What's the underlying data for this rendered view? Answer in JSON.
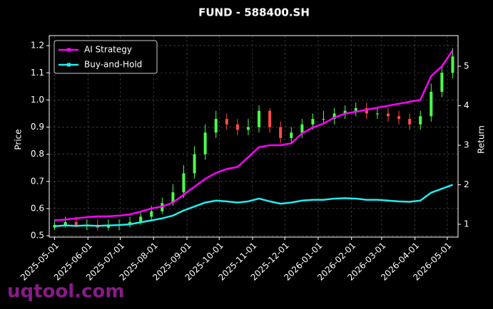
{
  "chart_data": {
    "type": "candlestick",
    "title": "FUND - 588400.SH",
    "ylabel": "Price",
    "y2label": "Return",
    "watermark": "uqtool.com",
    "x": [
      "2025-05-01",
      "2025-05-11",
      "2025-05-21",
      "2025-05-31",
      "2025-06-10",
      "2025-06-20",
      "2025-06-30",
      "2025-07-10",
      "2025-07-20",
      "2025-07-30",
      "2025-08-09",
      "2025-08-19",
      "2025-08-29",
      "2025-09-08",
      "2025-09-18",
      "2025-09-28",
      "2025-10-08",
      "2025-10-18",
      "2025-10-28",
      "2025-11-07",
      "2025-11-17",
      "2025-11-27",
      "2025-12-07",
      "2025-12-17",
      "2025-12-27",
      "2026-01-06",
      "2026-01-16",
      "2026-01-26",
      "2026-02-05",
      "2026-02-15",
      "2026-02-25",
      "2026-03-07",
      "2026-03-17",
      "2026-03-27",
      "2026-04-06",
      "2026-04-16",
      "2026-04-26",
      "2026-05-06"
    ],
    "candles": {
      "up_color": "#4cff4c",
      "down_color": "#ff4c4c",
      "open": [
        0.53,
        0.54,
        0.55,
        0.54,
        0.54,
        0.53,
        0.54,
        0.54,
        0.55,
        0.57,
        0.59,
        0.62,
        0.66,
        0.73,
        0.8,
        0.88,
        0.93,
        0.91,
        0.89,
        0.9,
        0.96,
        0.9,
        0.86,
        0.88,
        0.91,
        0.93,
        0.93,
        0.95,
        0.96,
        0.97,
        0.95,
        0.95,
        0.94,
        0.93,
        0.91,
        0.94,
        1.03,
        1.1
      ],
      "high": [
        0.56,
        0.57,
        0.57,
        0.56,
        0.56,
        0.56,
        0.56,
        0.57,
        0.59,
        0.61,
        0.64,
        0.69,
        0.76,
        0.83,
        0.91,
        0.96,
        0.95,
        0.93,
        0.93,
        0.98,
        0.97,
        0.92,
        0.9,
        0.93,
        0.95,
        0.96,
        0.97,
        0.98,
        0.99,
        0.99,
        0.97,
        0.97,
        0.96,
        0.95,
        0.96,
        1.06,
        1.13,
        1.19
      ],
      "low": [
        0.52,
        0.53,
        0.53,
        0.52,
        0.52,
        0.52,
        0.52,
        0.53,
        0.54,
        0.56,
        0.58,
        0.61,
        0.64,
        0.71,
        0.78,
        0.86,
        0.89,
        0.87,
        0.87,
        0.88,
        0.88,
        0.84,
        0.84,
        0.86,
        0.89,
        0.91,
        0.91,
        0.93,
        0.94,
        0.93,
        0.93,
        0.92,
        0.91,
        0.89,
        0.89,
        0.92,
        1.01,
        1.08
      ],
      "close": [
        0.54,
        0.55,
        0.54,
        0.54,
        0.53,
        0.54,
        0.54,
        0.55,
        0.57,
        0.59,
        0.62,
        0.66,
        0.73,
        0.8,
        0.88,
        0.93,
        0.91,
        0.89,
        0.9,
        0.96,
        0.9,
        0.86,
        0.88,
        0.91,
        0.93,
        0.93,
        0.95,
        0.96,
        0.97,
        0.95,
        0.95,
        0.94,
        0.93,
        0.91,
        0.94,
        1.03,
        1.1,
        1.16
      ]
    },
    "series": [
      {
        "name": "AI Strategy",
        "color": "#ff00ff",
        "axis": "y2",
        "values": [
          1.1,
          1.12,
          1.15,
          1.18,
          1.2,
          1.2,
          1.22,
          1.25,
          1.32,
          1.4,
          1.45,
          1.55,
          1.75,
          1.95,
          2.15,
          2.3,
          2.4,
          2.45,
          2.7,
          2.95,
          3.0,
          3.0,
          3.05,
          3.3,
          3.45,
          3.55,
          3.7,
          3.8,
          3.85,
          3.9,
          3.95,
          4.0,
          4.05,
          4.1,
          4.15,
          4.75,
          5.0,
          5.4
        ]
      },
      {
        "name": "Buy-and-Hold",
        "color": "#22eeee",
        "axis": "y2",
        "values": [
          0.95,
          0.97,
          0.96,
          0.97,
          0.96,
          0.97,
          0.98,
          1.0,
          1.05,
          1.1,
          1.15,
          1.22,
          1.35,
          1.45,
          1.55,
          1.6,
          1.58,
          1.55,
          1.58,
          1.65,
          1.58,
          1.52,
          1.55,
          1.6,
          1.62,
          1.62,
          1.65,
          1.66,
          1.65,
          1.62,
          1.62,
          1.6,
          1.58,
          1.57,
          1.6,
          1.8,
          1.9,
          2.0
        ]
      }
    ],
    "xlim": [
      "2025-04-26",
      "2026-05-11"
    ],
    "xticks": [
      "2025-05-01",
      "2025-06-01",
      "2025-07-01",
      "2025-08-01",
      "2025-09-01",
      "2025-10-01",
      "2025-11-01",
      "2025-12-01",
      "2026-01-01",
      "2026-02-01",
      "2026-03-01",
      "2026-04-01",
      "2026-05-01"
    ],
    "ylim": [
      0.495,
      1.237
    ],
    "yticks": [
      0.5,
      0.6,
      0.7,
      0.8,
      0.9,
      {
        "value": 1,
        "label": "1.0"
      },
      1.1,
      1.2
    ],
    "y2lim": [
      0.676,
      5.775
    ],
    "y2ticks": [
      1,
      2,
      3,
      4,
      5
    ],
    "grid": true,
    "legend": "upper left"
  }
}
